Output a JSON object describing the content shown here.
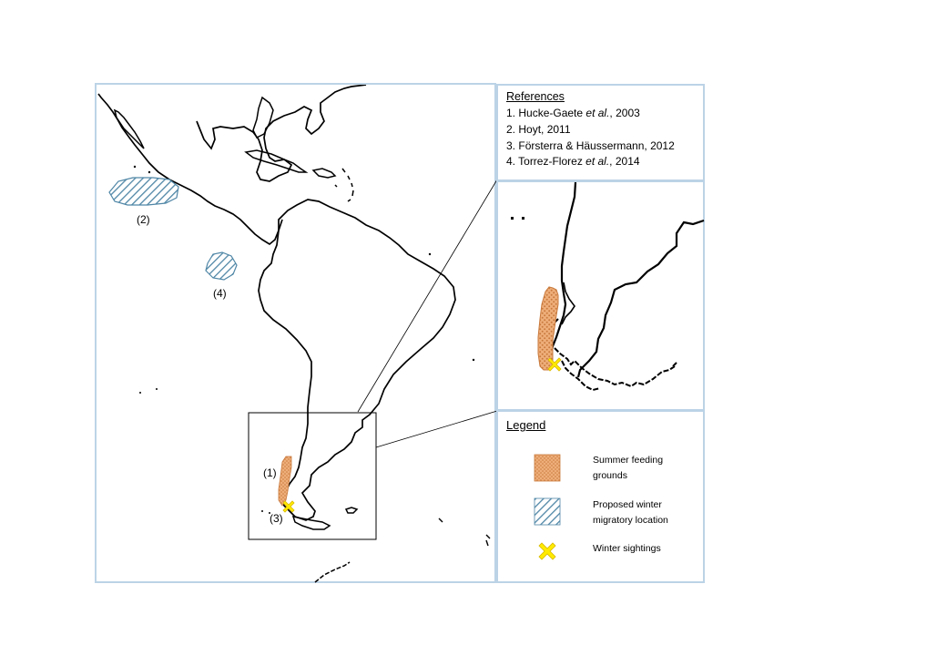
{
  "references": {
    "title": "References",
    "items": [
      {
        "num": "1.",
        "text_a": "Hucke-Gaete ",
        "text_i": "et al.",
        "text_b": ", 2003"
      },
      {
        "num": "2.",
        "text_a": "Hoyt, 2011",
        "text_i": "",
        "text_b": ""
      },
      {
        "num": "3.",
        "text_a": "Försterra & Häussermann, 2012",
        "text_i": "",
        "text_b": ""
      },
      {
        "num": "4.",
        "text_a": "Torrez-Florez ",
        "text_i": "et al.",
        "text_b": ", 2014"
      }
    ]
  },
  "legend": {
    "title": "Legend",
    "summer": {
      "line1": "Summer  feeding",
      "line2": "grounds",
      "color": "#e6a46b"
    },
    "winter": {
      "line1": "Proposed  winter",
      "line2": "migratory  location",
      "color": "#4f86a6"
    },
    "sightings": {
      "label": "Winter  sightings",
      "color": "#ffeb00"
    }
  },
  "map_labels": {
    "l1": "(1)",
    "l2": "(2)",
    "l3": "(3)",
    "l4": "(4)"
  }
}
